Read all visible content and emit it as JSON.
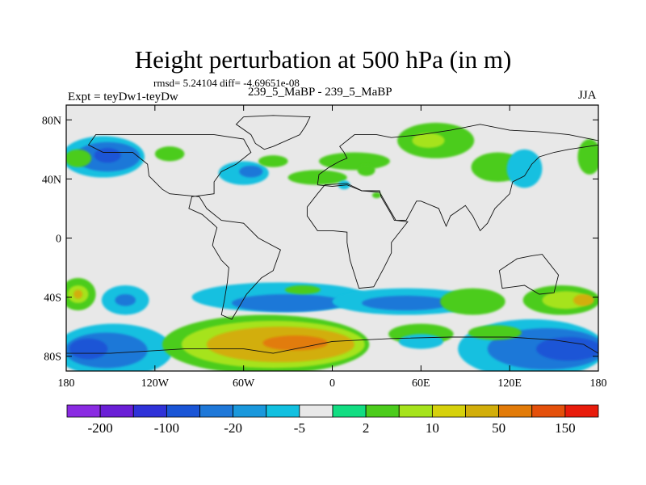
{
  "figure": {
    "title": "Height perturbation at 500 hPa (in m)",
    "stats": "rmsd= 5.24104 diff= -4.69651e-08",
    "left_label": "Expt = teyDw1-teyDw",
    "center_label": "239_5_MaBP - 239_5_MaBP",
    "right_label": "JJA"
  },
  "chart_data": {
    "type": "heatmap",
    "title": "Height perturbation at 500 hPa (in m)",
    "xlabel": "",
    "ylabel": "",
    "xlim": [
      -180,
      180
    ],
    "ylim": [
      -90,
      90
    ],
    "x_ticks": [
      {
        "value": -180,
        "label": "180"
      },
      {
        "value": -120,
        "label": "120W"
      },
      {
        "value": -60,
        "label": "60W"
      },
      {
        "value": 0,
        "label": "0"
      },
      {
        "value": 60,
        "label": "60E"
      },
      {
        "value": 120,
        "label": "120E"
      },
      {
        "value": 180,
        "label": "180"
      }
    ],
    "y_ticks": [
      {
        "value": 80,
        "label": "80N"
      },
      {
        "value": 40,
        "label": "40N"
      },
      {
        "value": 0,
        "label": "0"
      },
      {
        "value": -40,
        "label": "40S"
      },
      {
        "value": -80,
        "label": "80S"
      }
    ],
    "background_color": "#e8e8e8",
    "colorbar": {
      "colors": [
        "#8a2be2",
        "#6a1fd6",
        "#2f32d8",
        "#1a55d6",
        "#1f78d8",
        "#1a98dc",
        "#12c0e0",
        "#e8e8e8",
        "#12dd82",
        "#4ccc1c",
        "#a6e31c",
        "#d6d10c",
        "#d2ae0a",
        "#e27b09",
        "#e4500b",
        "#e81c0c"
      ],
      "labels": [
        "-200",
        "-100",
        "-20",
        "-5",
        "2",
        "10",
        "50",
        "150"
      ]
    },
    "regions": [
      {
        "lon": -155,
        "lat": 55,
        "rx": 28,
        "ry": 14,
        "value": -5
      },
      {
        "lon": -152,
        "lat": 55,
        "rx": 22,
        "ry": 10,
        "value": -20
      },
      {
        "lon": -152,
        "lat": 56,
        "rx": 9,
        "ry": 5,
        "value": -50
      },
      {
        "lon": -172,
        "lat": 54,
        "rx": 9,
        "ry": 6,
        "value": 5
      },
      {
        "lon": -110,
        "lat": 57,
        "rx": 10,
        "ry": 5,
        "value": 5
      },
      {
        "lon": -60,
        "lat": 44,
        "rx": 17,
        "ry": 8,
        "value": -5
      },
      {
        "lon": -55,
        "lat": 45,
        "rx": 8,
        "ry": 4,
        "value": -20
      },
      {
        "lon": -40,
        "lat": 52,
        "rx": 10,
        "ry": 4,
        "value": 5
      },
      {
        "lon": -10,
        "lat": 41,
        "rx": 20,
        "ry": 5,
        "value": 5
      },
      {
        "lon": 15,
        "lat": 52,
        "rx": 24,
        "ry": 6,
        "value": 5
      },
      {
        "lon": 8,
        "lat": 36,
        "rx": 4,
        "ry": 3,
        "value": -5
      },
      {
        "lon": 23,
        "lat": 46,
        "rx": 6,
        "ry": 4,
        "value": 5
      },
      {
        "lon": 70,
        "lat": 66,
        "rx": 26,
        "ry": 12,
        "value": 5
      },
      {
        "lon": 65,
        "lat": 66,
        "rx": 11,
        "ry": 5,
        "value": 10
      },
      {
        "lon": 112,
        "lat": 48,
        "rx": 18,
        "ry": 10,
        "value": 5
      },
      {
        "lon": 130,
        "lat": 47,
        "rx": 12,
        "ry": 13,
        "value": -5
      },
      {
        "lon": 174,
        "lat": 55,
        "rx": 8,
        "ry": 12,
        "value": 5
      },
      {
        "lon": 30,
        "lat": 29,
        "rx": 3,
        "ry": 2,
        "value": 5
      },
      {
        "lon": -172,
        "lat": -38,
        "rx": 12,
        "ry": 11,
        "value": 5
      },
      {
        "lon": -172,
        "lat": -38,
        "rx": 7,
        "ry": 6,
        "value": 10
      },
      {
        "lon": -172,
        "lat": -38,
        "rx": 3,
        "ry": 3,
        "value": 50
      },
      {
        "lon": -140,
        "lat": -42,
        "rx": 16,
        "ry": 10,
        "value": -5
      },
      {
        "lon": -140,
        "lat": -42,
        "rx": 7,
        "ry": 4,
        "value": -20
      },
      {
        "lon": -148,
        "lat": -76,
        "rx": 40,
        "ry": 18,
        "value": -5
      },
      {
        "lon": -153,
        "lat": -76,
        "rx": 28,
        "ry": 12,
        "value": -20
      },
      {
        "lon": -165,
        "lat": -75,
        "rx": 13,
        "ry": 7,
        "value": -50
      },
      {
        "lon": -45,
        "lat": -72,
        "rx": 70,
        "ry": 20,
        "value": 5
      },
      {
        "lon": -40,
        "lat": -72,
        "rx": 62,
        "ry": 16,
        "value": 10
      },
      {
        "lon": -35,
        "lat": -72,
        "rx": 50,
        "ry": 12,
        "value": 50
      },
      {
        "lon": -25,
        "lat": -71,
        "rx": 22,
        "ry": 5,
        "value": 80
      },
      {
        "lon": -35,
        "lat": -40,
        "rx": 60,
        "ry": 10,
        "value": -5
      },
      {
        "lon": -30,
        "lat": -44,
        "rx": 38,
        "ry": 6,
        "value": -20
      },
      {
        "lon": 50,
        "lat": -43,
        "rx": 50,
        "ry": 9,
        "value": -5
      },
      {
        "lon": 50,
        "lat": -44,
        "rx": 30,
        "ry": 5,
        "value": -20
      },
      {
        "lon": -20,
        "lat": -35,
        "rx": 12,
        "ry": 3,
        "value": 5
      },
      {
        "lon": 95,
        "lat": -43,
        "rx": 22,
        "ry": 9,
        "value": 5
      },
      {
        "lon": 155,
        "lat": -42,
        "rx": 26,
        "ry": 10,
        "value": 5
      },
      {
        "lon": 158,
        "lat": -42,
        "rx": 16,
        "ry": 6,
        "value": 10
      },
      {
        "lon": 170,
        "lat": -42,
        "rx": 7,
        "ry": 4,
        "value": 50
      },
      {
        "lon": 135,
        "lat": -75,
        "rx": 50,
        "ry": 20,
        "value": -5
      },
      {
        "lon": 145,
        "lat": -75,
        "rx": 40,
        "ry": 14,
        "value": -20
      },
      {
        "lon": 160,
        "lat": -75,
        "rx": 22,
        "ry": 8,
        "value": -50
      },
      {
        "lon": 110,
        "lat": -64,
        "rx": 18,
        "ry": 5,
        "value": 5
      },
      {
        "lon": 60,
        "lat": -65,
        "rx": 22,
        "ry": 7,
        "value": 5
      },
      {
        "lon": 60,
        "lat": -70,
        "rx": 15,
        "ry": 5,
        "value": -5
      }
    ],
    "coastlines": [
      [
        [
          -60,
          82
        ],
        [
          -40,
          83
        ],
        [
          -15,
          82
        ],
        [
          -18,
          76
        ],
        [
          -22,
          70
        ],
        [
          -40,
          62
        ],
        [
          -46,
          60
        ],
        [
          -52,
          64
        ],
        [
          -55,
          70
        ],
        [
          -65,
          77
        ],
        [
          -60,
          82
        ]
      ],
      [
        [
          -80,
          70
        ],
        [
          -60,
          67
        ],
        [
          -55,
          58
        ],
        [
          -65,
          50
        ],
        [
          -75,
          45
        ],
        [
          -80,
          38
        ],
        [
          -80,
          30
        ],
        [
          -95,
          28
        ],
        [
          -97,
          20
        ],
        [
          -88,
          16
        ],
        [
          -80,
          9
        ],
        [
          -78,
          7
        ],
        [
          -80,
          0
        ],
        [
          -81,
          -5
        ],
        [
          -75,
          -15
        ],
        [
          -70,
          -20
        ],
        [
          -71,
          -30
        ],
        [
          -73,
          -42
        ],
        [
          -75,
          -52
        ],
        [
          -68,
          -55
        ],
        [
          -65,
          -50
        ],
        [
          -58,
          -38
        ],
        [
          -48,
          -27
        ],
        [
          -40,
          -22
        ],
        [
          -35,
          -8
        ],
        [
          -50,
          0
        ],
        [
          -60,
          10
        ],
        [
          -75,
          12
        ],
        [
          -85,
          20
        ],
        [
          -90,
          28
        ],
        [
          -110,
          30
        ],
        [
          -115,
          33
        ],
        [
          -124,
          42
        ],
        [
          -125,
          50
        ],
        [
          -135,
          58
        ],
        [
          -155,
          58
        ],
        [
          -165,
          63
        ],
        [
          -160,
          70
        ],
        [
          -140,
          70
        ],
        [
          -120,
          70
        ],
        [
          -100,
          70
        ],
        [
          -80,
          70
        ]
      ],
      [
        [
          -10,
          36
        ],
        [
          -9,
          43
        ],
        [
          -2,
          48
        ],
        [
          5,
          52
        ],
        [
          10,
          54
        ],
        [
          8,
          58
        ],
        [
          5,
          62
        ],
        [
          15,
          70
        ],
        [
          30,
          70
        ],
        [
          40,
          68
        ],
        [
          60,
          70
        ],
        [
          80,
          73
        ],
        [
          100,
          77
        ],
        [
          120,
          73
        ],
        [
          140,
          72
        ],
        [
          160,
          70
        ],
        [
          180,
          66
        ],
        [
          180,
          63
        ],
        [
          160,
          60
        ],
        [
          150,
          58
        ],
        [
          140,
          55
        ],
        [
          135,
          50
        ],
        [
          130,
          42
        ],
        [
          122,
          38
        ],
        [
          120,
          30
        ],
        [
          110,
          20
        ],
        [
          105,
          10
        ],
        [
          100,
          5
        ],
        [
          95,
          15
        ],
        [
          90,
          22
        ],
        [
          80,
          15
        ],
        [
          77,
          8
        ],
        [
          72,
          20
        ],
        [
          60,
          25
        ],
        [
          57,
          25
        ],
        [
          50,
          12
        ],
        [
          42,
          12
        ],
        [
          40,
          16
        ],
        [
          33,
          28
        ],
        [
          32,
          32
        ],
        [
          20,
          32
        ],
        [
          10,
          36
        ],
        [
          0,
          35
        ],
        [
          -10,
          36
        ]
      ],
      [
        [
          -17,
          21
        ],
        [
          -17,
          15
        ],
        [
          -10,
          5
        ],
        [
          0,
          5
        ],
        [
          10,
          4
        ],
        [
          10,
          -3
        ],
        [
          12,
          -15
        ],
        [
          18,
          -34
        ],
        [
          28,
          -33
        ],
        [
          35,
          -20
        ],
        [
          40,
          -10
        ],
        [
          40,
          -3
        ],
        [
          51,
          11
        ],
        [
          43,
          12
        ],
        [
          32,
          31
        ],
        [
          20,
          32
        ],
        [
          10,
          37
        ],
        [
          -5,
          36
        ],
        [
          -10,
          30
        ],
        [
          -17,
          21
        ]
      ],
      [
        [
          113,
          -22
        ],
        [
          115,
          -34
        ],
        [
          130,
          -32
        ],
        [
          140,
          -38
        ],
        [
          150,
          -37
        ],
        [
          153,
          -25
        ],
        [
          142,
          -11
        ],
        [
          135,
          -12
        ],
        [
          125,
          -14
        ],
        [
          113,
          -22
        ]
      ],
      [
        [
          -180,
          -78
        ],
        [
          -150,
          -78
        ],
        [
          -100,
          -75
        ],
        [
          -60,
          -75
        ],
        [
          -40,
          -78
        ],
        [
          0,
          -70
        ],
        [
          40,
          -68
        ],
        [
          80,
          -67
        ],
        [
          120,
          -67
        ],
        [
          150,
          -69
        ],
        [
          170,
          -72
        ],
        [
          180,
          -78
        ]
      ]
    ]
  }
}
